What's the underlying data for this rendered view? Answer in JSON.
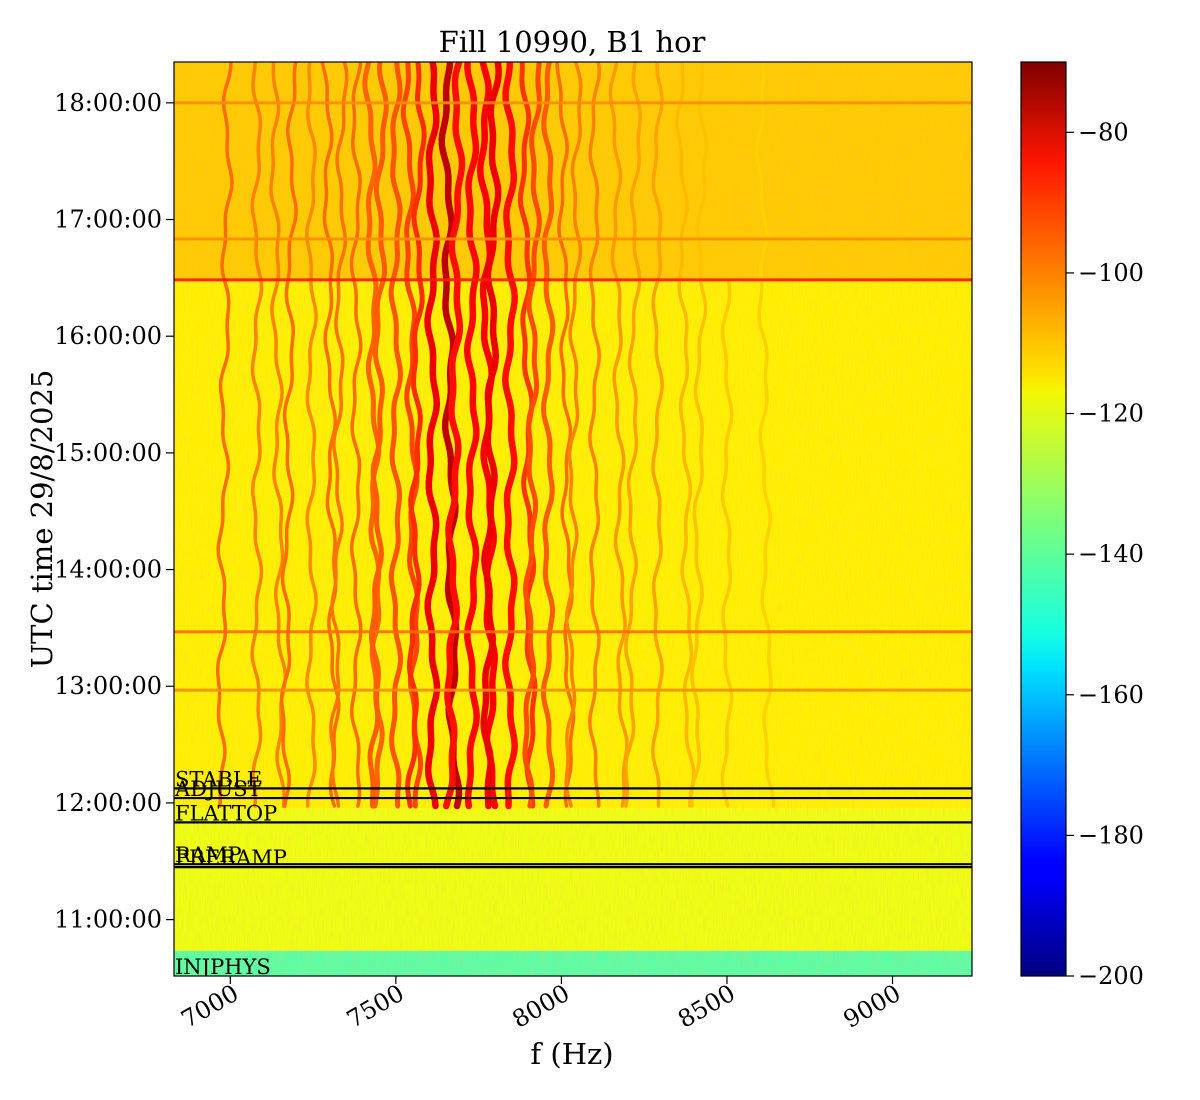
{
  "chart_data": {
    "type": "heatmap",
    "title": "Fill 10990, B1 hor",
    "xlabel": "f (Hz)",
    "ylabel": "UTC time 29/8/2025",
    "xlim": [
      6830,
      9240
    ],
    "ylim": [
      "10:31:00",
      "18:21:00"
    ],
    "x_ticks": [
      {
        "value": 7000,
        "label": "7000"
      },
      {
        "value": 7500,
        "label": "7500"
      },
      {
        "value": 8000,
        "label": "8000"
      },
      {
        "value": 8500,
        "label": "8500"
      },
      {
        "value": 9000,
        "label": "9000"
      }
    ],
    "y_ticks": [
      {
        "value": "11:00:00",
        "label": "11:00:00"
      },
      {
        "value": "12:00:00",
        "label": "12:00:00"
      },
      {
        "value": "13:00:00",
        "label": "13:00:00"
      },
      {
        "value": "14:00:00",
        "label": "14:00:00"
      },
      {
        "value": "15:00:00",
        "label": "15:00:00"
      },
      {
        "value": "16:00:00",
        "label": "16:00:00"
      },
      {
        "value": "17:00:00",
        "label": "17:00:00"
      },
      {
        "value": "18:00:00",
        "label": "18:00:00"
      }
    ],
    "colorbar": {
      "colormap": "jet",
      "range": [
        -200,
        -70
      ],
      "ticks": [
        {
          "value": -80,
          "label": "−80"
        },
        {
          "value": -100,
          "label": "−100"
        },
        {
          "value": -120,
          "label": "−120"
        },
        {
          "value": -140,
          "label": "−140"
        },
        {
          "value": -160,
          "label": "−160"
        },
        {
          "value": -180,
          "label": "−180"
        },
        {
          "value": -200,
          "label": "−200"
        }
      ]
    },
    "regions": [
      {
        "from": "10:31:00",
        "to": "10:44:00",
        "level": -140
      },
      {
        "from": "10:44:00",
        "to": "11:57:00",
        "level": -121
      },
      {
        "from": "11:57:00",
        "to": "16:28:00",
        "level": -117
      },
      {
        "from": "16:28:00",
        "to": "18:21:00",
        "level": -112
      }
    ],
    "spectral_lines": [
      {
        "f": 6995,
        "level": -100
      },
      {
        "f": 7080,
        "level": -103
      },
      {
        "f": 7130,
        "level": -103
      },
      {
        "f": 7190,
        "level": -100
      },
      {
        "f": 7245,
        "level": -104
      },
      {
        "f": 7290,
        "level": -100
      },
      {
        "f": 7340,
        "level": -101
      },
      {
        "f": 7380,
        "level": -100
      },
      {
        "f": 7420,
        "level": -99
      },
      {
        "f": 7460,
        "level": -98
      },
      {
        "f": 7500,
        "level": -97
      },
      {
        "f": 7535,
        "level": -95
      },
      {
        "f": 7575,
        "level": -92
      },
      {
        "f": 7610,
        "level": -84
      },
      {
        "f": 7650,
        "level": -78
      },
      {
        "f": 7690,
        "level": -88
      },
      {
        "f": 7730,
        "level": -87
      },
      {
        "f": 7765,
        "level": -86
      },
      {
        "f": 7800,
        "level": -84
      },
      {
        "f": 7845,
        "level": -88
      },
      {
        "f": 7885,
        "level": -93
      },
      {
        "f": 7925,
        "level": -96
      },
      {
        "f": 7960,
        "level": -98
      },
      {
        "f": 8000,
        "level": -100
      },
      {
        "f": 8050,
        "level": -103
      },
      {
        "f": 8100,
        "level": -103
      },
      {
        "f": 8160,
        "level": -106
      },
      {
        "f": 8230,
        "level": -107
      },
      {
        "f": 8290,
        "level": -107
      },
      {
        "f": 8360,
        "level": -110
      },
      {
        "f": 8430,
        "level": -111
      },
      {
        "f": 8500,
        "level": -112
      },
      {
        "f": 8600,
        "level": -113
      }
    ],
    "horizontal_streaks": [
      {
        "time": "16:29:00",
        "level": -90
      },
      {
        "time": "13:28:00",
        "level": -100
      },
      {
        "time": "12:58:00",
        "level": -104
      },
      {
        "time": "16:50:00",
        "level": -104
      },
      {
        "time": "18:00:00",
        "level": -104
      }
    ],
    "annotations": [
      {
        "label": "STABLE",
        "time": "12:07:30"
      },
      {
        "label": "ADJUST",
        "time": "12:02:30"
      },
      {
        "label": "FLATTOP",
        "time": "11:50:00"
      },
      {
        "label": "RAMP",
        "time": "11:28:30"
      },
      {
        "label": "PRERAMP",
        "time": "11:27:00"
      },
      {
        "label": "INJPHYS",
        "time": "10:31:00"
      }
    ]
  }
}
